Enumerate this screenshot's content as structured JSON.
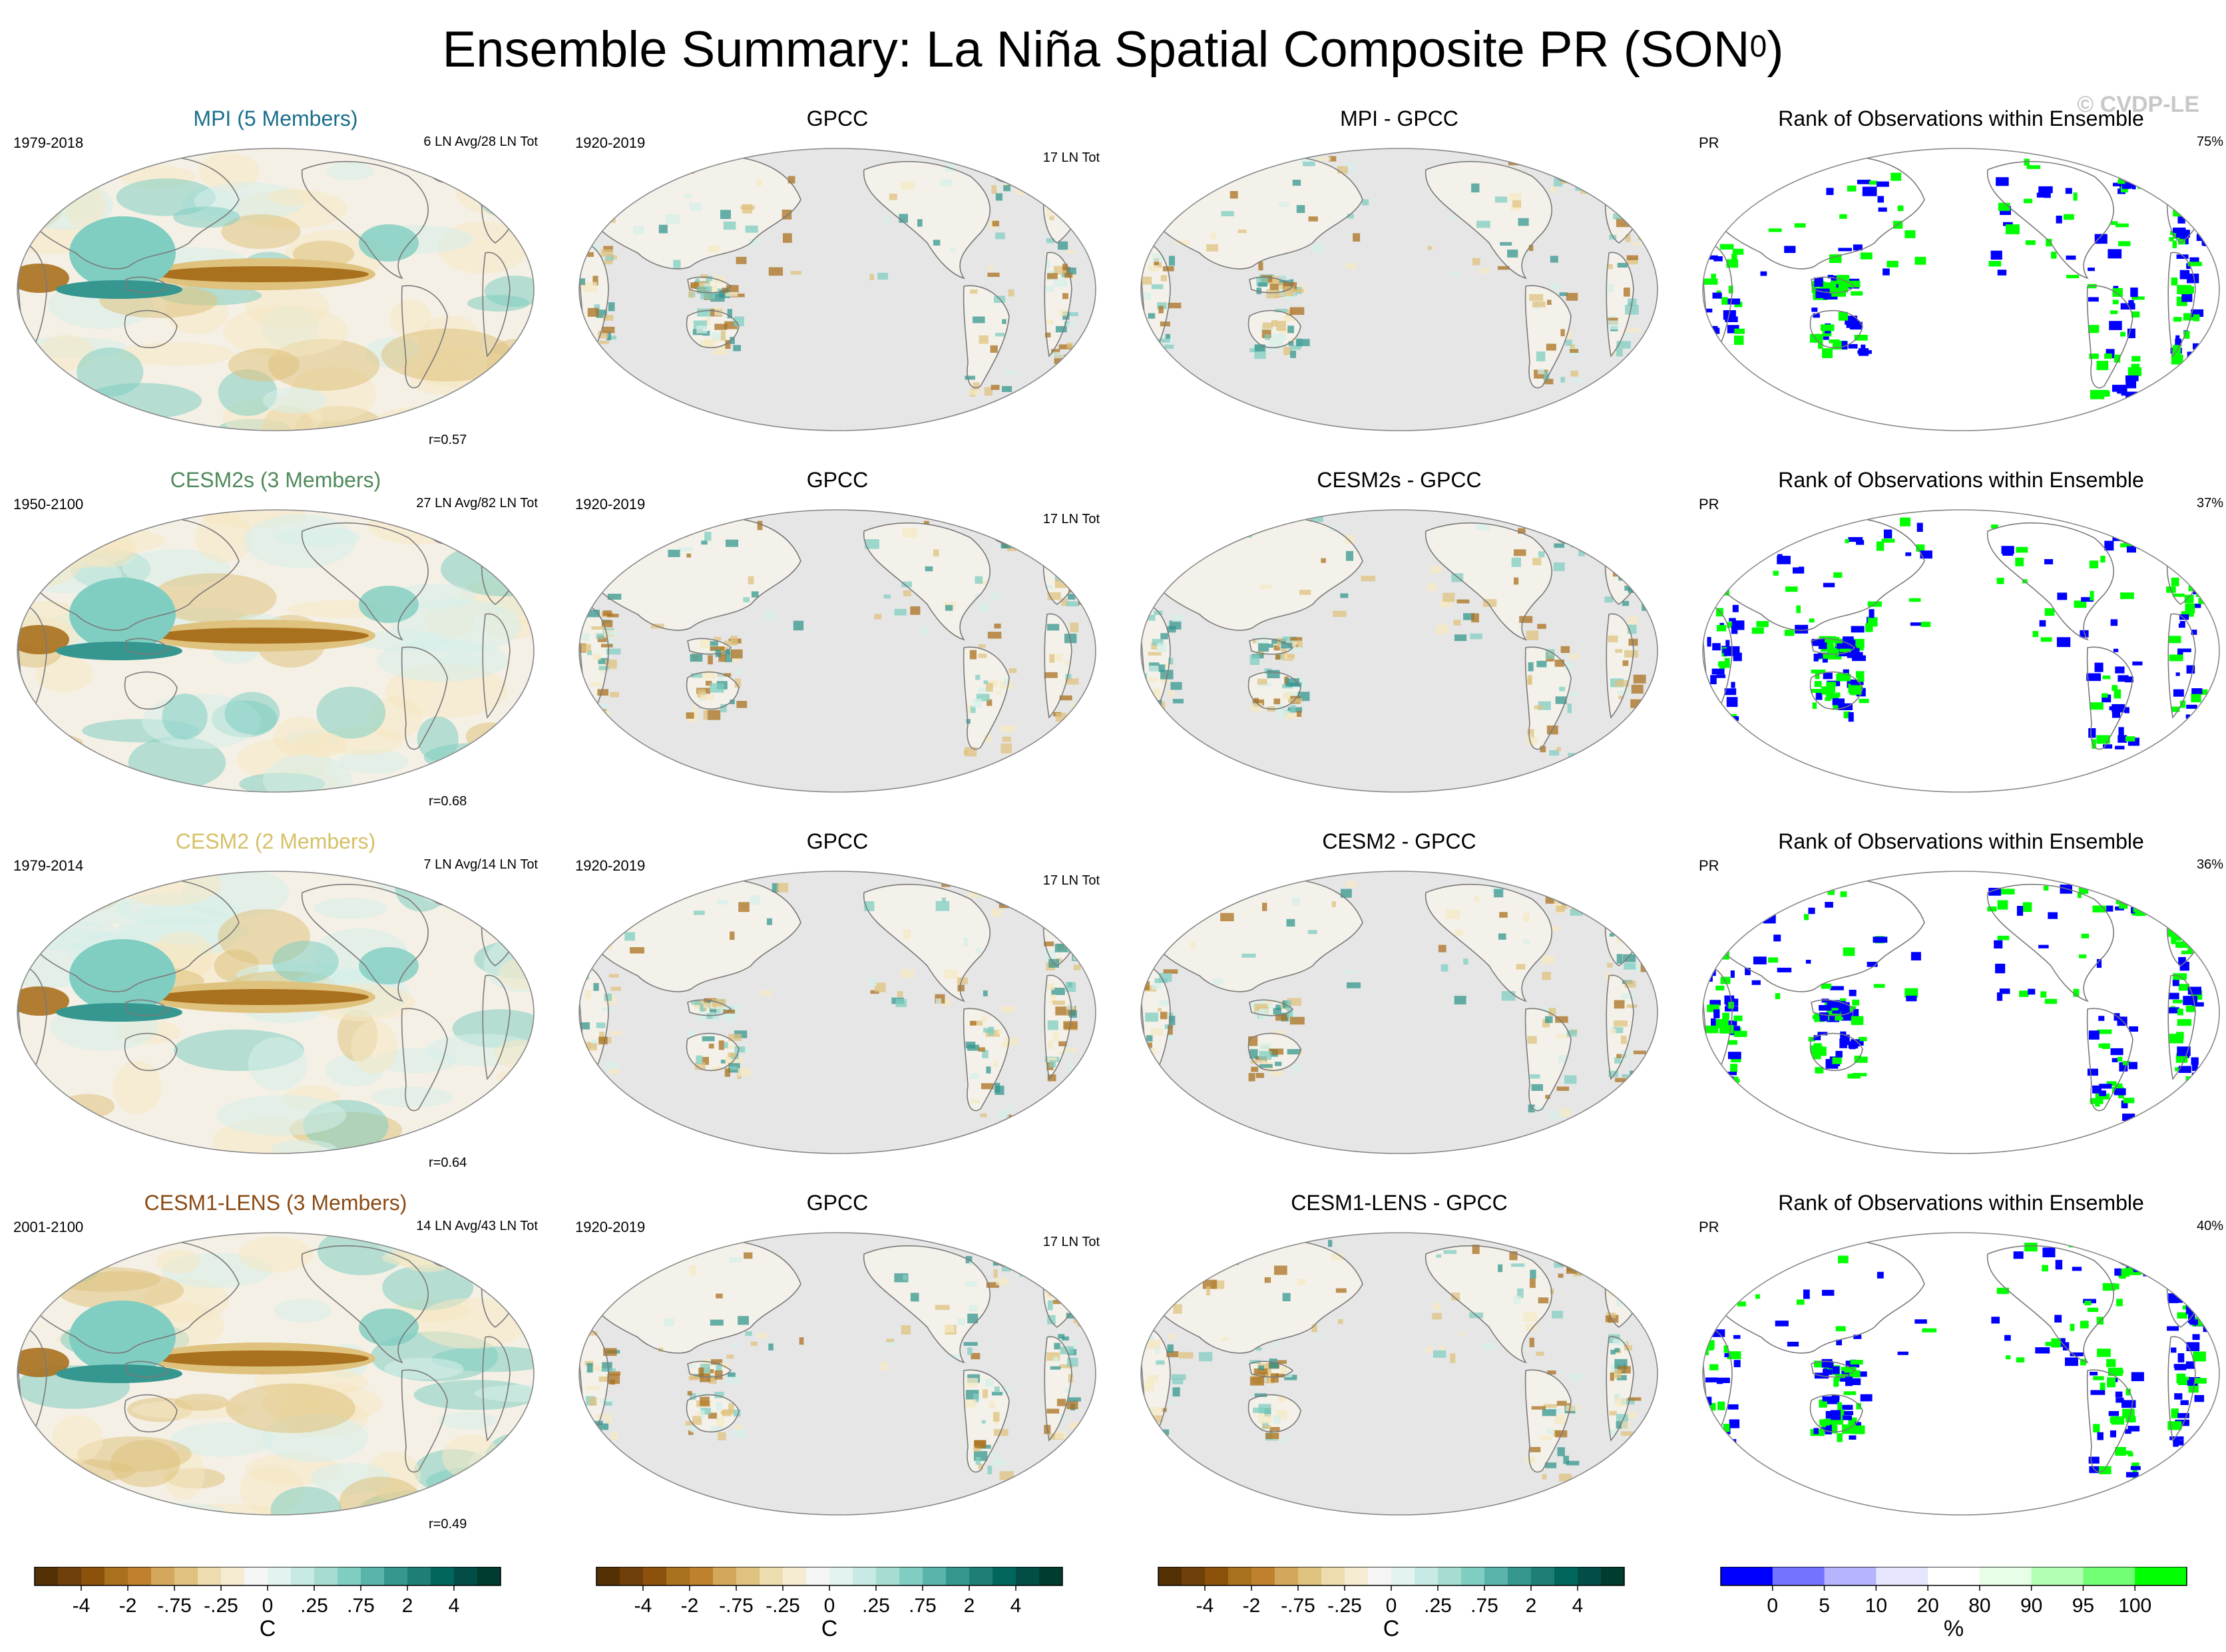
{
  "title_main": "Ensemble Summary: La Niña Spatial Composite PR (SON",
  "title_sup": "0",
  "title_end": ")",
  "watermark": "© CVDP-LE",
  "rows": [
    {
      "model": {
        "title": "MPI (5 Members)",
        "title_color": "#1a6e8c",
        "years": "1979-2018",
        "info": "6 LN Avg/28 LN Tot",
        "corr": "r=0.57"
      },
      "obs": {
        "title": "GPCC",
        "years": "1920-2019",
        "info": "17 LN Tot"
      },
      "diff": {
        "title": "MPI - GPCC"
      },
      "rank": {
        "title": "Rank of Observations within Ensemble",
        "var": "PR",
        "pct": "75%"
      }
    },
    {
      "model": {
        "title": "CESM2s (3 Members)",
        "title_color": "#4f8a5a",
        "years": "1950-2100",
        "info": "27 LN Avg/82 LN Tot",
        "corr": "r=0.68"
      },
      "obs": {
        "title": "GPCC",
        "years": "1920-2019",
        "info": "17 LN Tot"
      },
      "diff": {
        "title": "CESM2s - GPCC"
      },
      "rank": {
        "title": "Rank of Observations within Ensemble",
        "var": "PR",
        "pct": "37%"
      }
    },
    {
      "model": {
        "title": "CESM2 (2 Members)",
        "title_color": "#d6c067",
        "years": "1979-2014",
        "info": "7 LN Avg/14 LN Tot",
        "corr": "r=0.64"
      },
      "obs": {
        "title": "GPCC",
        "years": "1920-2019",
        "info": "17 LN Tot"
      },
      "diff": {
        "title": "CESM2 - GPCC"
      },
      "rank": {
        "title": "Rank of Observations within Ensemble",
        "var": "PR",
        "pct": "36%"
      }
    },
    {
      "model": {
        "title": "CESM1-LENS (3 Members)",
        "title_color": "#8a4a14",
        "years": "2001-2100",
        "info": "14 LN Avg/43 LN Tot",
        "corr": "r=0.49"
      },
      "obs": {
        "title": "GPCC",
        "years": "1920-2019",
        "info": "17 LN Tot"
      },
      "diff": {
        "title": "CESM1-LENS - GPCC"
      },
      "rank": {
        "title": "Rank of Observations within Ensemble",
        "var": "PR",
        "pct": "40%"
      }
    }
  ],
  "colorbar_div": {
    "colors": [
      "#543005",
      "#6f400a",
      "#8c510a",
      "#a9701e",
      "#bf812d",
      "#d3a75c",
      "#dfc27d",
      "#ecdcae",
      "#f6ecd2",
      "#f5f5f5",
      "#e3f3f0",
      "#c7eae5",
      "#a7dcd2",
      "#80cdc1",
      "#5ab4ac",
      "#35978f",
      "#1f7f76",
      "#01665e",
      "#024d46",
      "#003c30"
    ],
    "labels": [
      "-4",
      "-2",
      "-.75",
      "-.25",
      "0",
      ".25",
      ".75",
      "2",
      "4"
    ],
    "label_boundaries": [
      2,
      4,
      6,
      8,
      10,
      12,
      14,
      16,
      18
    ],
    "unit": "C"
  },
  "colorbar_rank": {
    "colors": [
      "#0000ff",
      "#7373ff",
      "#b4b4ff",
      "#e6e6ff",
      "#ffffff",
      "#e6ffe6",
      "#b4ffb4",
      "#73ff73",
      "#00ff00"
    ],
    "labels": [
      "0",
      "5",
      "10",
      "20",
      "80",
      "90",
      "95",
      "100"
    ],
    "label_boundaries": [
      1,
      2,
      3,
      4,
      5,
      6,
      7,
      8
    ],
    "unit": "%"
  },
  "map_colors": {
    "ocean_background": "#e6e6e6",
    "coast": "#7a7a7a",
    "dry_strong": "#a9701e",
    "dry_mid": "#dfc27d",
    "dry_light": "#f6e8c3",
    "neutral": "#f5f0e6",
    "wet_light": "#d5efe9",
    "wet_mid": "#80cdc1",
    "wet_strong": "#35978f",
    "rank_low": "#0000ff",
    "rank_high": "#00ff00"
  }
}
